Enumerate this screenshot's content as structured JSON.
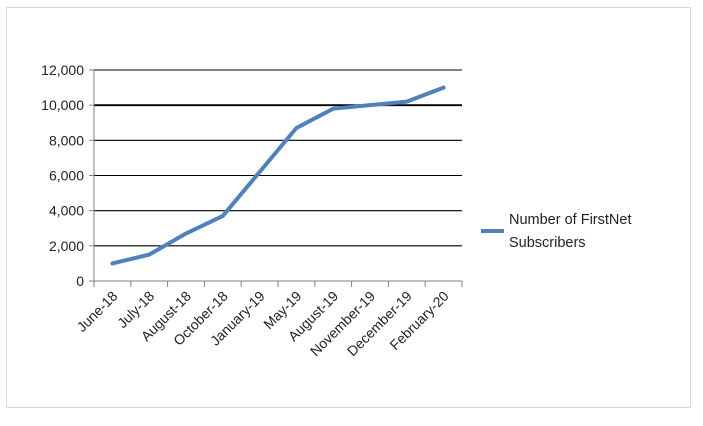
{
  "chart_data": {
    "type": "line",
    "categories": [
      "June-18",
      "July-18",
      "August-18",
      "October-18",
      "January-19",
      "May-19",
      "August-19",
      "November-19",
      "December-19",
      "February-20"
    ],
    "series": [
      {
        "name": "Number of FirstNet Subscribers",
        "values": [
          1000,
          1500,
          2700,
          3700,
          6200,
          8700,
          9800,
          10000,
          10200,
          11000
        ],
        "color": "#4f81bd"
      }
    ],
    "y_ticks": [
      "0",
      "2,000",
      "4,000",
      "6,000",
      "8,000",
      "10,000",
      "12,000"
    ],
    "ylim": [
      0,
      12000
    ],
    "grid": true,
    "legend_position": "right",
    "colors": {
      "series_line": "#4f81bd",
      "gridline": "#000000",
      "axis": "#7f7f7f",
      "frame": "#d9d9d9"
    }
  }
}
